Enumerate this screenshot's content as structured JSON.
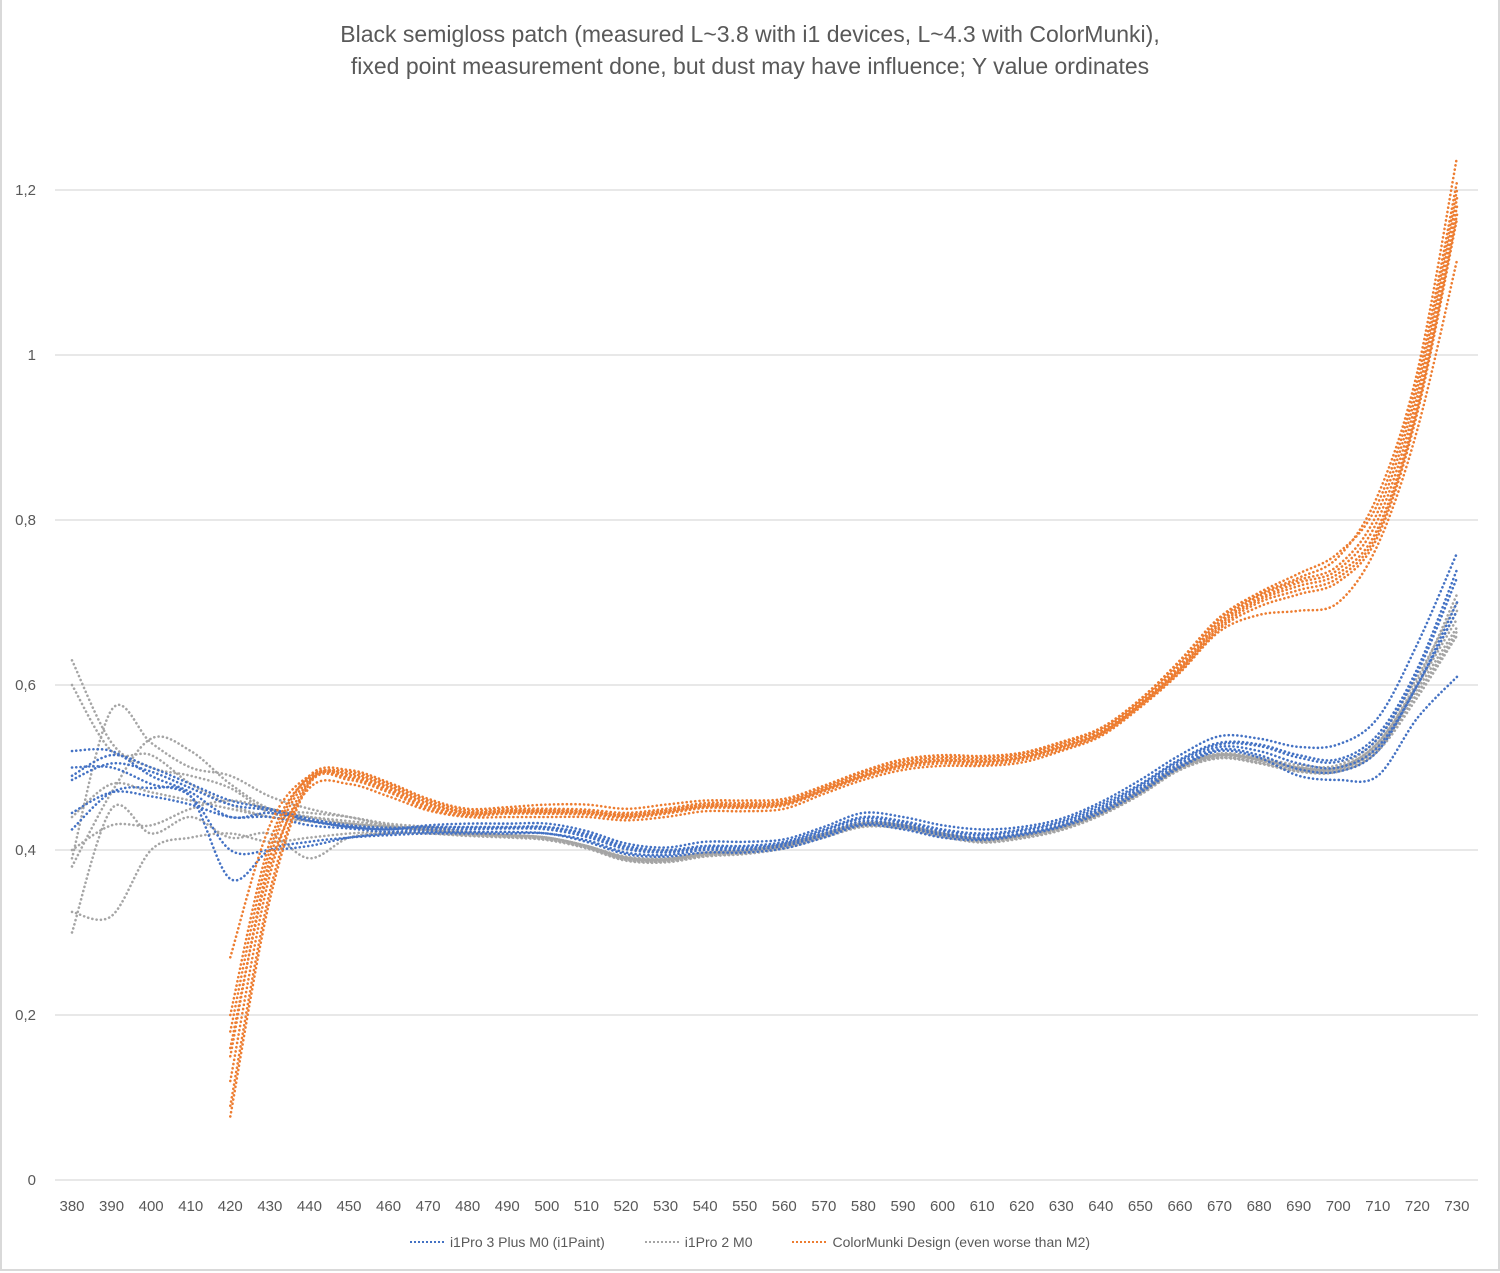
{
  "chart_data": {
    "type": "line",
    "title_lines": [
      "Black semigloss patch (measured L~3.8 with i1 devices, L~4.3 with ColorMunki),",
      "fixed point measurement done, but dust may have influence; Y value ordinates"
    ],
    "xlabel": "",
    "ylabel": "",
    "x": [
      380,
      390,
      400,
      410,
      420,
      430,
      440,
      450,
      460,
      470,
      480,
      490,
      500,
      510,
      520,
      530,
      540,
      550,
      560,
      570,
      580,
      590,
      600,
      610,
      620,
      630,
      640,
      650,
      660,
      670,
      680,
      690,
      700,
      710,
      720,
      730
    ],
    "x_tick_labels": [
      "380",
      "390",
      "400",
      "410",
      "420",
      "430",
      "440",
      "450",
      "460",
      "470",
      "480",
      "490",
      "500",
      "510",
      "520",
      "530",
      "540",
      "550",
      "560",
      "570",
      "580",
      "590",
      "600",
      "610",
      "620",
      "630",
      "640",
      "650",
      "660",
      "670",
      "680",
      "690",
      "700",
      "710",
      "720",
      "730"
    ],
    "ylim": [
      0,
      1.3
    ],
    "y_ticks": [
      0,
      0.2,
      0.4,
      0.6,
      0.8,
      1.0,
      1.2
    ],
    "y_tick_labels": [
      "0",
      "0,2",
      "0,4",
      "0,6",
      "0,8",
      "1",
      "1,2"
    ],
    "grid": "horizontal",
    "legend_position": "bottom",
    "line_style": "dotted",
    "groups": [
      {
        "name": "i1Pro 3 Plus M0 (i1Paint)",
        "color": "#4472c4",
        "series": [
          [
            0.52,
            0.52,
            0.49,
            0.47,
            0.44,
            0.445,
            0.435,
            0.428,
            0.425,
            0.43,
            0.432,
            0.432,
            0.432,
            0.423,
            0.408,
            0.403,
            0.41,
            0.41,
            0.413,
            0.428,
            0.445,
            0.44,
            0.43,
            0.425,
            0.428,
            0.438,
            0.458,
            0.485,
            0.515,
            0.538,
            0.535,
            0.525,
            0.528,
            0.56,
            0.65,
            0.76
          ],
          [
            0.49,
            0.515,
            0.5,
            0.48,
            0.46,
            0.45,
            0.438,
            0.43,
            0.427,
            0.428,
            0.428,
            0.428,
            0.428,
            0.42,
            0.405,
            0.4,
            0.405,
            0.405,
            0.41,
            0.425,
            0.44,
            0.435,
            0.425,
            0.42,
            0.425,
            0.435,
            0.455,
            0.48,
            0.51,
            0.53,
            0.528,
            0.515,
            0.51,
            0.54,
            0.62,
            0.74
          ],
          [
            0.485,
            0.505,
            0.495,
            0.475,
            0.455,
            0.448,
            0.436,
            0.428,
            0.425,
            0.427,
            0.427,
            0.427,
            0.427,
            0.418,
            0.403,
            0.398,
            0.403,
            0.403,
            0.408,
            0.423,
            0.438,
            0.433,
            0.423,
            0.418,
            0.423,
            0.433,
            0.452,
            0.478,
            0.508,
            0.528,
            0.526,
            0.512,
            0.507,
            0.535,
            0.615,
            0.73
          ],
          [
            0.445,
            0.47,
            0.465,
            0.455,
            0.44,
            0.44,
            0.43,
            0.426,
            0.422,
            0.425,
            0.425,
            0.426,
            0.425,
            0.416,
            0.401,
            0.397,
            0.402,
            0.402,
            0.407,
            0.42,
            0.435,
            0.43,
            0.42,
            0.415,
            0.42,
            0.43,
            0.45,
            0.475,
            0.505,
            0.525,
            0.52,
            0.505,
            0.5,
            0.525,
            0.6,
            0.7
          ],
          [
            0.425,
            0.47,
            0.475,
            0.465,
            0.365,
            0.4,
            0.41,
            0.415,
            0.418,
            0.42,
            0.42,
            0.42,
            0.42,
            0.41,
            0.395,
            0.392,
            0.397,
            0.397,
            0.402,
            0.415,
            0.43,
            0.425,
            0.415,
            0.412,
            0.418,
            0.428,
            0.445,
            0.47,
            0.5,
            0.52,
            0.512,
            0.49,
            0.485,
            0.49,
            0.56,
            0.61
          ],
          [
            0.5,
            0.5,
            0.48,
            0.465,
            0.4,
            0.4,
            0.405,
            0.415,
            0.42,
            0.422,
            0.422,
            0.422,
            0.42,
            0.412,
            0.397,
            0.394,
            0.4,
            0.4,
            0.405,
            0.418,
            0.432,
            0.428,
            0.418,
            0.414,
            0.42,
            0.43,
            0.448,
            0.473,
            0.502,
            0.522,
            0.515,
            0.498,
            0.495,
            0.52,
            0.6,
            0.69
          ]
        ]
      },
      {
        "name": "i1Pro 2 M0",
        "color": "#a5a5a5",
        "series": [
          [
            0.63,
            0.53,
            0.5,
            0.49,
            0.475,
            0.445,
            0.44,
            0.435,
            0.43,
            0.425,
            0.42,
            0.418,
            0.415,
            0.405,
            0.39,
            0.388,
            0.395,
            0.398,
            0.405,
            0.418,
            0.432,
            0.43,
            0.42,
            0.413,
            0.418,
            0.428,
            0.445,
            0.47,
            0.5,
            0.515,
            0.51,
            0.5,
            0.5,
            0.53,
            0.6,
            0.68
          ],
          [
            0.39,
            0.57,
            0.53,
            0.5,
            0.49,
            0.465,
            0.45,
            0.44,
            0.43,
            0.425,
            0.418,
            0.416,
            0.413,
            0.403,
            0.388,
            0.386,
            0.393,
            0.396,
            0.403,
            0.416,
            0.43,
            0.428,
            0.418,
            0.41,
            0.416,
            0.426,
            0.443,
            0.468,
            0.498,
            0.512,
            0.505,
            0.495,
            0.495,
            0.52,
            0.59,
            0.66
          ],
          [
            0.38,
            0.47,
            0.535,
            0.52,
            0.48,
            0.45,
            0.445,
            0.44,
            0.432,
            0.428,
            0.422,
            0.418,
            0.415,
            0.405,
            0.392,
            0.39,
            0.397,
            0.4,
            0.407,
            0.42,
            0.433,
            0.431,
            0.421,
            0.414,
            0.419,
            0.429,
            0.447,
            0.472,
            0.502,
            0.517,
            0.512,
            0.503,
            0.503,
            0.535,
            0.61,
            0.7
          ],
          [
            0.4,
            0.43,
            0.43,
            0.45,
            0.46,
            0.45,
            0.44,
            0.432,
            0.428,
            0.423,
            0.419,
            0.417,
            0.414,
            0.404,
            0.39,
            0.388,
            0.395,
            0.398,
            0.405,
            0.418,
            0.431,
            0.429,
            0.419,
            0.412,
            0.417,
            0.427,
            0.445,
            0.47,
            0.5,
            0.514,
            0.508,
            0.498,
            0.498,
            0.525,
            0.595,
            0.67
          ],
          [
            0.3,
            0.45,
            0.42,
            0.44,
            0.415,
            0.42,
            0.39,
            0.415,
            0.42,
            0.42,
            0.418,
            0.416,
            0.413,
            0.403,
            0.388,
            0.386,
            0.393,
            0.396,
            0.403,
            0.416,
            0.429,
            0.427,
            0.417,
            0.41,
            0.415,
            0.425,
            0.443,
            0.468,
            0.498,
            0.512,
            0.506,
            0.496,
            0.496,
            0.522,
            0.59,
            0.665
          ],
          [
            0.325,
            0.32,
            0.4,
            0.415,
            0.42,
            0.41,
            0.415,
            0.42,
            0.422,
            0.42,
            0.417,
            0.415,
            0.412,
            0.402,
            0.387,
            0.385,
            0.392,
            0.395,
            0.402,
            0.415,
            0.428,
            0.426,
            0.416,
            0.409,
            0.414,
            0.424,
            0.442,
            0.467,
            0.497,
            0.511,
            0.505,
            0.495,
            0.495,
            0.52,
            0.585,
            0.66
          ],
          [
            0.6,
            0.52,
            0.515,
            0.48,
            0.455,
            0.44,
            0.435,
            0.43,
            0.427,
            0.424,
            0.42,
            0.418,
            0.415,
            0.405,
            0.391,
            0.389,
            0.396,
            0.399,
            0.406,
            0.419,
            0.432,
            0.43,
            0.42,
            0.413,
            0.418,
            0.428,
            0.446,
            0.471,
            0.501,
            0.516,
            0.51,
            0.5,
            0.5,
            0.53,
            0.605,
            0.71
          ],
          [
            0.44,
            0.48,
            0.47,
            0.46,
            0.45,
            0.44,
            0.435,
            0.432,
            0.428,
            0.424,
            0.42,
            0.418,
            0.415,
            0.405,
            0.39,
            0.388,
            0.395,
            0.398,
            0.405,
            0.418,
            0.431,
            0.429,
            0.419,
            0.412,
            0.417,
            0.427,
            0.445,
            0.47,
            0.5,
            0.515,
            0.509,
            0.499,
            0.499,
            0.528,
            0.6,
            0.69
          ]
        ]
      },
      {
        "name": "ColorMunki Design (even worse than M2)",
        "color": "#ed7d31",
        "series": [
          [
            null,
            null,
            null,
            null,
            0.27,
            0.43,
            0.49,
            0.495,
            0.48,
            0.46,
            0.448,
            0.45,
            0.45,
            0.449,
            0.445,
            0.45,
            0.457,
            0.457,
            0.46,
            0.477,
            0.495,
            0.508,
            0.513,
            0.512,
            0.517,
            0.53,
            0.547,
            0.582,
            0.628,
            0.68,
            0.71,
            0.73,
            0.755,
            0.83,
            0.98,
            1.24
          ],
          [
            null,
            null,
            null,
            null,
            0.2,
            0.41,
            0.488,
            0.493,
            0.478,
            0.458,
            0.446,
            0.448,
            0.448,
            0.447,
            0.443,
            0.448,
            0.455,
            0.455,
            0.458,
            0.475,
            0.493,
            0.506,
            0.511,
            0.51,
            0.515,
            0.528,
            0.545,
            0.58,
            0.625,
            0.677,
            0.708,
            0.727,
            0.745,
            0.81,
            0.96,
            1.2
          ],
          [
            null,
            null,
            null,
            null,
            0.15,
            0.39,
            0.486,
            0.491,
            0.476,
            0.456,
            0.445,
            0.447,
            0.447,
            0.446,
            0.442,
            0.447,
            0.454,
            0.454,
            0.457,
            0.474,
            0.491,
            0.504,
            0.509,
            0.508,
            0.513,
            0.526,
            0.543,
            0.578,
            0.622,
            0.675,
            0.705,
            0.724,
            0.74,
            0.8,
            0.95,
            1.19
          ],
          [
            null,
            null,
            null,
            null,
            0.12,
            0.37,
            0.484,
            0.489,
            0.474,
            0.454,
            0.444,
            0.446,
            0.446,
            0.445,
            0.441,
            0.446,
            0.453,
            0.453,
            0.456,
            0.473,
            0.49,
            0.503,
            0.508,
            0.507,
            0.512,
            0.525,
            0.542,
            0.577,
            0.62,
            0.673,
            0.703,
            0.72,
            0.735,
            0.79,
            0.94,
            1.18
          ],
          [
            null,
            null,
            null,
            null,
            0.09,
            0.35,
            0.482,
            0.487,
            0.472,
            0.452,
            0.443,
            0.445,
            0.445,
            0.444,
            0.44,
            0.445,
            0.452,
            0.452,
            0.455,
            0.472,
            0.489,
            0.502,
            0.507,
            0.506,
            0.511,
            0.524,
            0.541,
            0.576,
            0.618,
            0.67,
            0.7,
            0.715,
            0.73,
            0.785,
            0.935,
            1.17
          ],
          [
            null,
            null,
            null,
            null,
            0.077,
            0.34,
            0.48,
            0.485,
            0.47,
            0.45,
            0.442,
            0.444,
            0.444,
            0.443,
            0.439,
            0.444,
            0.451,
            0.451,
            0.454,
            0.471,
            0.488,
            0.5,
            0.505,
            0.504,
            0.509,
            0.522,
            0.54,
            0.575,
            0.617,
            0.668,
            0.695,
            0.71,
            0.725,
            0.78,
            0.93,
            1.165
          ],
          [
            null,
            null,
            null,
            null,
            0.16,
            0.38,
            0.475,
            0.48,
            0.465,
            0.448,
            0.44,
            0.44,
            0.44,
            0.44,
            0.436,
            0.44,
            0.447,
            0.447,
            0.45,
            0.468,
            0.485,
            0.497,
            0.502,
            0.502,
            0.506,
            0.52,
            0.538,
            0.573,
            0.615,
            0.665,
            0.685,
            0.69,
            0.7,
            0.77,
            0.91,
            1.115
          ],
          [
            null,
            null,
            null,
            null,
            0.18,
            0.4,
            0.49,
            0.497,
            0.482,
            0.462,
            0.45,
            0.452,
            0.455,
            0.455,
            0.45,
            0.455,
            0.46,
            0.46,
            0.462,
            0.478,
            0.496,
            0.51,
            0.515,
            0.514,
            0.518,
            0.531,
            0.548,
            0.583,
            0.63,
            0.682,
            0.712,
            0.735,
            0.76,
            0.82,
            0.97,
            1.21
          ]
        ]
      }
    ]
  }
}
